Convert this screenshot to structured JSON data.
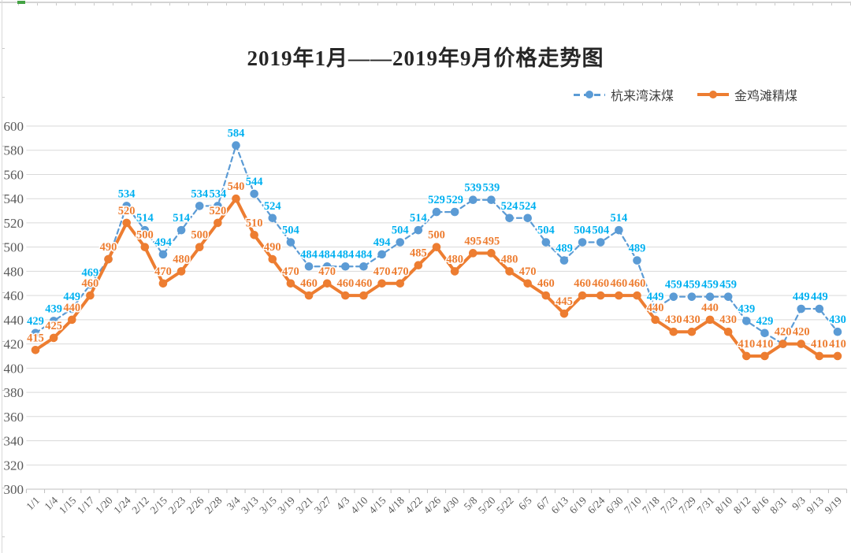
{
  "title": "2019年1月——2019年9月价格走势图",
  "colors": {
    "series1_line": "#5B9BD5",
    "series1_label": "#00B0F0",
    "series2_line": "#ED7D31",
    "series2_label": "#ED7D31",
    "gridline": "#D9D9D9",
    "axis_line": "#BFBFBF",
    "axis_text": "#595959",
    "title_text": "#262626"
  },
  "chart_data": {
    "type": "line",
    "title": "2019年1月——2019年9月价格走势图",
    "xlabel": "",
    "ylabel": "",
    "ylim": [
      300,
      600
    ],
    "ytick_step": 20,
    "grid": true,
    "legend_position": "top-right",
    "categories": [
      "1/1",
      "1/4",
      "1/15",
      "1/17",
      "1/20",
      "1/24",
      "2/12",
      "2/15",
      "2/23",
      "2/26",
      "2/28",
      "3/4",
      "3/13",
      "3/15",
      "3/19",
      "3/21",
      "3/27",
      "4/3",
      "4/10",
      "4/15",
      "4/18",
      "4/22",
      "4/26",
      "4/30",
      "5/8",
      "5/20",
      "5/22",
      "6/5",
      "6/7",
      "6/13",
      "6/19",
      "6/24",
      "6/30",
      "7/10",
      "7/18",
      "7/23",
      "7/29",
      "7/31",
      "8/10",
      "8/12",
      "8/16",
      "8/31",
      "9/3",
      "9/13",
      "9/19"
    ],
    "series": [
      {
        "name": "杭来湾沫煤",
        "style": "dashed",
        "color": "#5B9BD5",
        "label_color": "#00B0F0",
        "values": [
          429,
          439,
          449,
          469,
          490,
          534,
          514,
          494,
          514,
          534,
          534,
          584,
          544,
          524,
          504,
          484,
          484,
          484,
          484,
          494,
          504,
          514,
          529,
          529,
          539,
          539,
          524,
          524,
          504,
          489,
          504,
          504,
          514,
          489,
          449,
          459,
          459,
          459,
          459,
          439,
          429,
          420,
          449,
          449,
          430
        ]
      },
      {
        "name": "金鸡滩精煤",
        "style": "solid",
        "color": "#ED7D31",
        "label_color": "#ED7D31",
        "values": [
          415,
          425,
          440,
          460,
          490,
          520,
          500,
          470,
          480,
          500,
          520,
          540,
          510,
          490,
          470,
          460,
          470,
          460,
          460,
          470,
          470,
          485,
          500,
          480,
          495,
          495,
          480,
          470,
          460,
          445,
          460,
          460,
          460,
          460,
          440,
          430,
          430,
          440,
          430,
          410,
          410,
          420,
          420,
          410,
          410
        ]
      }
    ]
  }
}
